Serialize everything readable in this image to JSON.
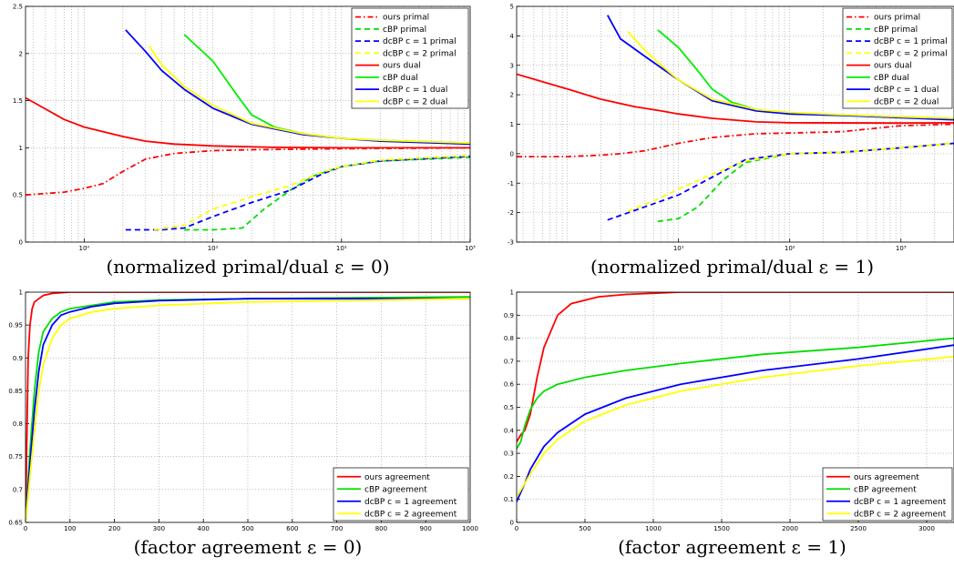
{
  "chart_data": [
    {
      "type": "line",
      "caption": "(normalized primal/dual ε = 0)",
      "xscale": "log",
      "xlim": [
        0.35,
        1000
      ],
      "ylim": [
        0,
        2.5
      ],
      "yticks": [
        0,
        0.5,
        1,
        1.5,
        2,
        2.5
      ],
      "ytick_labels": [
        "0",
        "0.5",
        "1",
        "1.5",
        "2",
        "2.5"
      ],
      "xticks": [
        1,
        10,
        100,
        1000
      ],
      "xtick_labels": [
        "10⁰",
        "10¹",
        "10²",
        "10³"
      ],
      "grid": true,
      "legend_position": "top-right",
      "series": [
        {
          "name": "ours primal",
          "color": "#ff0000",
          "dash": "dashdot",
          "x": [
            0.35,
            0.7,
            1,
            1.4,
            2,
            3,
            5,
            10,
            20,
            100,
            1000
          ],
          "y": [
            0.5,
            0.53,
            0.57,
            0.62,
            0.75,
            0.88,
            0.94,
            0.97,
            0.98,
            0.99,
            1.0
          ]
        },
        {
          "name": "cBP primal",
          "color": "#00dd00",
          "dash": "dashed",
          "x": [
            6,
            10,
            17,
            25,
            40,
            60,
            100,
            200,
            1000
          ],
          "y": [
            0.13,
            0.13,
            0.15,
            0.35,
            0.55,
            0.7,
            0.8,
            0.86,
            0.9
          ]
        },
        {
          "name": "dcBP c = 1 primal",
          "color": "#0000ff",
          "dash": "dashed",
          "x": [
            2.1,
            4,
            6,
            10,
            20,
            40,
            70,
            100,
            200,
            1000
          ],
          "y": [
            0.13,
            0.13,
            0.15,
            0.27,
            0.42,
            0.55,
            0.72,
            0.8,
            0.86,
            0.91
          ]
        },
        {
          "name": "dcBP c = 2 primal",
          "color": "#ffff00",
          "dash": "dashed",
          "x": [
            3.5,
            6,
            10,
            20,
            40,
            70,
            100,
            200,
            1000
          ],
          "y": [
            0.13,
            0.18,
            0.35,
            0.48,
            0.6,
            0.74,
            0.8,
            0.87,
            0.92
          ]
        },
        {
          "name": "ours dual",
          "color": "#ff0000",
          "dash": "solid",
          "x": [
            0.35,
            0.7,
            1,
            2,
            3,
            5,
            10,
            30,
            100,
            1000
          ],
          "y": [
            1.53,
            1.3,
            1.22,
            1.12,
            1.07,
            1.04,
            1.02,
            1.005,
            1.0,
            1.0
          ]
        },
        {
          "name": "cBP dual",
          "color": "#00ee00",
          "dash": "solid",
          "x": [
            6,
            10,
            15,
            20,
            30,
            50,
            100,
            200,
            1000
          ],
          "y": [
            2.2,
            1.92,
            1.58,
            1.35,
            1.22,
            1.15,
            1.1,
            1.08,
            1.05
          ]
        },
        {
          "name": "dcBP c = 1 dual",
          "color": "#0000ff",
          "dash": "solid",
          "x": [
            2.1,
            3,
            4,
            6,
            10,
            20,
            50,
            100,
            200,
            1000
          ],
          "y": [
            2.25,
            2.02,
            1.82,
            1.62,
            1.42,
            1.25,
            1.14,
            1.1,
            1.07,
            1.04
          ]
        },
        {
          "name": "dcBP c = 2 dual",
          "color": "#ffff00",
          "dash": "solid",
          "x": [
            3.2,
            4,
            6,
            10,
            20,
            50,
            100,
            200,
            1000
          ],
          "y": [
            2.08,
            1.88,
            1.65,
            1.45,
            1.26,
            1.15,
            1.1,
            1.08,
            1.05
          ]
        }
      ]
    },
    {
      "type": "line",
      "caption": "(normalized primal/dual ε = 1)",
      "xscale": "log",
      "xlim": [
        0.35,
        3000
      ],
      "ylim": [
        -3,
        5
      ],
      "yticks": [
        -3,
        -2,
        -1,
        0,
        1,
        2,
        3,
        4,
        5
      ],
      "ytick_labels": [
        "-3",
        "-2",
        "-1",
        "0",
        "1",
        "2",
        "3",
        "4",
        "5"
      ],
      "xticks": [
        10,
        100,
        1000
      ],
      "xtick_labels": [
        "10¹",
        "10²",
        "10³"
      ],
      "grid": true,
      "legend_position": "top-right",
      "series": [
        {
          "name": "ours primal",
          "color": "#ff0000",
          "dash": "dashdot",
          "x": [
            0.35,
            1,
            2,
            3,
            5,
            10,
            20,
            50,
            100,
            300,
            1000,
            3000
          ],
          "y": [
            -0.1,
            -0.1,
            -0.05,
            0.0,
            0.1,
            0.35,
            0.55,
            0.68,
            0.7,
            0.75,
            0.95,
            1.0
          ]
        },
        {
          "name": "cBP primal",
          "color": "#00dd00",
          "dash": "dashed",
          "x": [
            6.5,
            10,
            15,
            25,
            40,
            100,
            300,
            1000,
            3000
          ],
          "y": [
            -2.3,
            -2.2,
            -1.8,
            -0.9,
            -0.3,
            0.0,
            0.05,
            0.2,
            0.35
          ]
        },
        {
          "name": "dcBP c = 1 primal",
          "color": "#0000ff",
          "dash": "dashed",
          "x": [
            2.3,
            5,
            10,
            20,
            40,
            100,
            300,
            1000,
            3000
          ],
          "y": [
            -2.25,
            -1.8,
            -1.4,
            -0.8,
            -0.2,
            0.0,
            0.05,
            0.2,
            0.35
          ]
        },
        {
          "name": "dcBP c = 2 primal",
          "color": "#ffff00",
          "dash": "dashed",
          "x": [
            3.5,
            6,
            10,
            20,
            40,
            100,
            300,
            1000,
            3000
          ],
          "y": [
            -1.95,
            -1.6,
            -1.2,
            -0.7,
            -0.25,
            0.0,
            0.05,
            0.2,
            0.35
          ]
        },
        {
          "name": "ours dual",
          "color": "#ff0000",
          "dash": "solid",
          "x": [
            0.35,
            1,
            2,
            4,
            7,
            10,
            20,
            50,
            100,
            1000,
            3000
          ],
          "y": [
            2.7,
            2.2,
            1.85,
            1.6,
            1.45,
            1.35,
            1.2,
            1.08,
            1.05,
            1.04,
            1.05
          ]
        },
        {
          "name": "cBP dual",
          "color": "#00ee00",
          "dash": "solid",
          "x": [
            6.5,
            10,
            15,
            20,
            30,
            50,
            100,
            300,
            1000,
            3000
          ],
          "y": [
            4.2,
            3.6,
            2.8,
            2.2,
            1.75,
            1.5,
            1.35,
            1.3,
            1.25,
            1.2
          ]
        },
        {
          "name": "dcBP c = 1 dual",
          "color": "#0000ff",
          "dash": "solid",
          "x": [
            2.3,
            3,
            5,
            10,
            20,
            50,
            100,
            300,
            1000,
            3000
          ],
          "y": [
            4.7,
            3.9,
            3.3,
            2.5,
            1.8,
            1.45,
            1.35,
            1.3,
            1.22,
            1.15
          ]
        },
        {
          "name": "dcBP c = 2 dual",
          "color": "#ffff00",
          "dash": "solid",
          "x": [
            3.5,
            5,
            7,
            10,
            20,
            50,
            100,
            300,
            1000,
            3000
          ],
          "y": [
            4.15,
            3.5,
            3.0,
            2.5,
            1.85,
            1.5,
            1.4,
            1.32,
            1.25,
            1.2
          ]
        }
      ]
    },
    {
      "type": "line",
      "caption": "(factor agreement ε = 0)",
      "xscale": "linear",
      "xlim": [
        0,
        1000
      ],
      "ylim": [
        0.65,
        1
      ],
      "yticks": [
        0.65,
        0.7,
        0.75,
        0.8,
        0.85,
        0.9,
        0.95,
        1
      ],
      "ytick_labels": [
        "0.65",
        "0.7",
        "0.75",
        "0.8",
        "0.85",
        "0.9",
        "0.95",
        "1"
      ],
      "xticks": [
        0,
        100,
        200,
        300,
        400,
        500,
        600,
        700,
        800,
        900,
        1000
      ],
      "xtick_labels": [
        "0",
        "100",
        "200",
        "300",
        "400",
        "500",
        "600",
        "700",
        "800",
        "900",
        "1000"
      ],
      "grid": true,
      "legend_position": "bottom-right",
      "series": [
        {
          "name": "ours agreement",
          "color": "#ff0000",
          "dash": "solid",
          "x": [
            0,
            3,
            6,
            10,
            15,
            20,
            30,
            40,
            60,
            100,
            1000
          ],
          "y": [
            0.65,
            0.78,
            0.9,
            0.95,
            0.975,
            0.985,
            0.99,
            0.995,
            0.998,
            1.0,
            1.0
          ]
        },
        {
          "name": "cBP agreement",
          "color": "#00dd00",
          "dash": "solid",
          "x": [
            0,
            10,
            20,
            30,
            40,
            60,
            80,
            100,
            150,
            200,
            300,
            500,
            1000
          ],
          "y": [
            0.65,
            0.76,
            0.85,
            0.91,
            0.94,
            0.96,
            0.97,
            0.975,
            0.98,
            0.985,
            0.988,
            0.99,
            0.993
          ]
        },
        {
          "name": "dcBP c = 1 agreement",
          "color": "#0000ff",
          "dash": "solid",
          "x": [
            0,
            10,
            20,
            30,
            40,
            60,
            80,
            100,
            150,
            200,
            300,
            500,
            1000
          ],
          "y": [
            0.65,
            0.74,
            0.82,
            0.88,
            0.92,
            0.95,
            0.965,
            0.97,
            0.978,
            0.983,
            0.987,
            0.99,
            0.99
          ]
        },
        {
          "name": "dcBP c = 2 agreement",
          "color": "#ffff00",
          "dash": "solid",
          "x": [
            0,
            10,
            20,
            30,
            40,
            60,
            80,
            100,
            150,
            200,
            300,
            500,
            1000
          ],
          "y": [
            0.65,
            0.72,
            0.79,
            0.85,
            0.89,
            0.93,
            0.95,
            0.96,
            0.97,
            0.975,
            0.98,
            0.985,
            0.99
          ]
        }
      ]
    },
    {
      "type": "line",
      "caption": "(factor agreement ε = 1)",
      "xscale": "linear",
      "xlim": [
        0,
        3200
      ],
      "ylim": [
        0,
        1
      ],
      "yticks": [
        0,
        0.1,
        0.2,
        0.3,
        0.4,
        0.5,
        0.6,
        0.7,
        0.8,
        0.9,
        1
      ],
      "ytick_labels": [
        "0",
        "0.1",
        "0.2",
        "0.3",
        "0.4",
        "0.5",
        "0.6",
        "0.7",
        "0.8",
        "0.9",
        "1"
      ],
      "xticks": [
        0,
        500,
        1000,
        1500,
        2000,
        2500,
        3000
      ],
      "xtick_labels": [
        "0",
        "500",
        "1000",
        "1500",
        "2000",
        "2500",
        "3000"
      ],
      "grid": true,
      "legend_position": "bottom-right",
      "series": [
        {
          "name": "ours agreement",
          "color": "#ff0000",
          "dash": "solid",
          "x": [
            0,
            30,
            60,
            100,
            150,
            200,
            300,
            400,
            600,
            800,
            1200,
            3200
          ],
          "y": [
            0.35,
            0.38,
            0.4,
            0.47,
            0.63,
            0.76,
            0.9,
            0.95,
            0.98,
            0.99,
            1.0,
            1.0
          ]
        },
        {
          "name": "cBP agreement",
          "color": "#00dd00",
          "dash": "solid",
          "x": [
            0,
            30,
            60,
            100,
            150,
            200,
            300,
            500,
            800,
            1200,
            1800,
            2500,
            3200
          ],
          "y": [
            0.32,
            0.35,
            0.42,
            0.49,
            0.54,
            0.57,
            0.6,
            0.63,
            0.66,
            0.69,
            0.73,
            0.76,
            0.8
          ]
        },
        {
          "name": "dcBP c = 1 agreement",
          "color": "#0000ff",
          "dash": "solid",
          "x": [
            0,
            30,
            60,
            100,
            200,
            300,
            500,
            800,
            1200,
            1800,
            2500,
            3200
          ],
          "y": [
            0.09,
            0.13,
            0.17,
            0.23,
            0.33,
            0.39,
            0.47,
            0.54,
            0.6,
            0.66,
            0.71,
            0.77
          ]
        },
        {
          "name": "dcBP c = 2 agreement",
          "color": "#ffff00",
          "dash": "solid",
          "x": [
            0,
            30,
            60,
            100,
            200,
            300,
            500,
            800,
            1200,
            1800,
            2500,
            3200
          ],
          "y": [
            0.11,
            0.14,
            0.17,
            0.21,
            0.3,
            0.36,
            0.44,
            0.51,
            0.57,
            0.63,
            0.68,
            0.72
          ]
        }
      ]
    }
  ]
}
